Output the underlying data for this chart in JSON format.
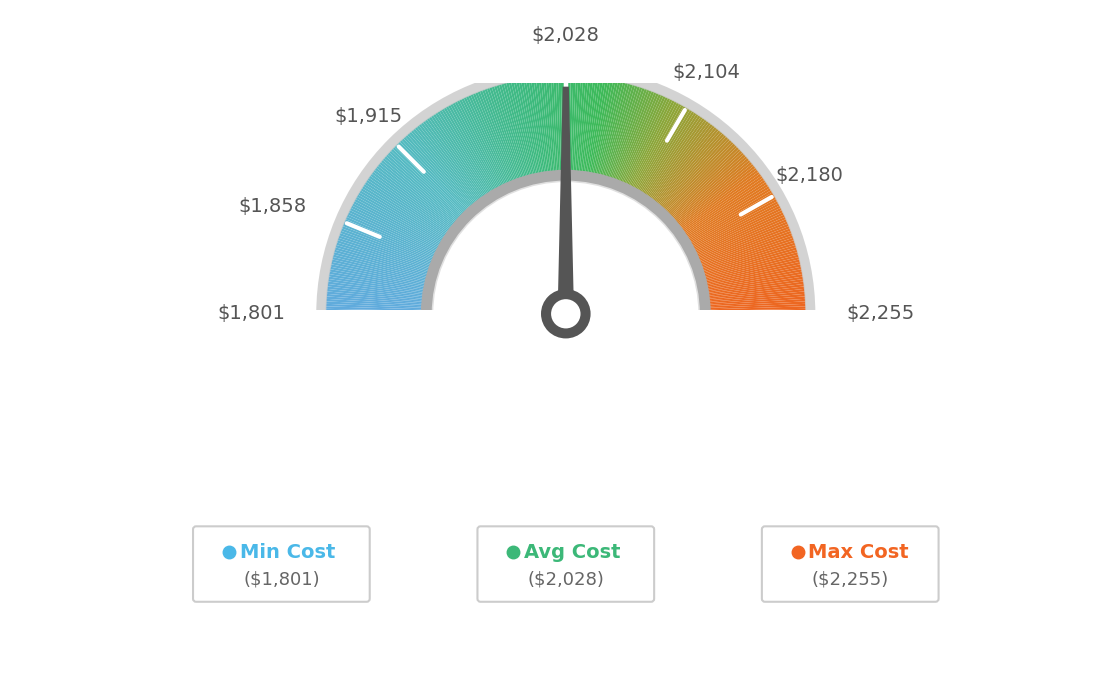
{
  "min_val": 1801,
  "avg_val": 2028,
  "max_val": 2255,
  "tick_labels": [
    "$1,801",
    "$1,858",
    "$1,915",
    "$2,028",
    "$2,104",
    "$2,180",
    "$2,255"
  ],
  "tick_values": [
    1801,
    1858,
    1915,
    2028,
    2104,
    2180,
    2255
  ],
  "legend_labels": [
    "Min Cost",
    "Avg Cost",
    "Max Cost"
  ],
  "legend_values": [
    "($1,801)",
    "($2,028)",
    "($2,255)"
  ],
  "legend_colors": [
    "#4ab8e8",
    "#3cb878",
    "#f26522"
  ],
  "bg_color": "#ffffff",
  "color_stops": [
    [
      0.0,
      [
        0.38,
        0.67,
        0.87
      ]
    ],
    [
      0.25,
      [
        0.33,
        0.73,
        0.76
      ]
    ],
    [
      0.45,
      [
        0.24,
        0.73,
        0.49
      ]
    ],
    [
      0.55,
      [
        0.24,
        0.73,
        0.35
      ]
    ],
    [
      0.65,
      [
        0.55,
        0.65,
        0.22
      ]
    ],
    [
      0.8,
      [
        0.88,
        0.48,
        0.13
      ]
    ],
    [
      1.0,
      [
        0.93,
        0.4,
        0.13
      ]
    ]
  ]
}
